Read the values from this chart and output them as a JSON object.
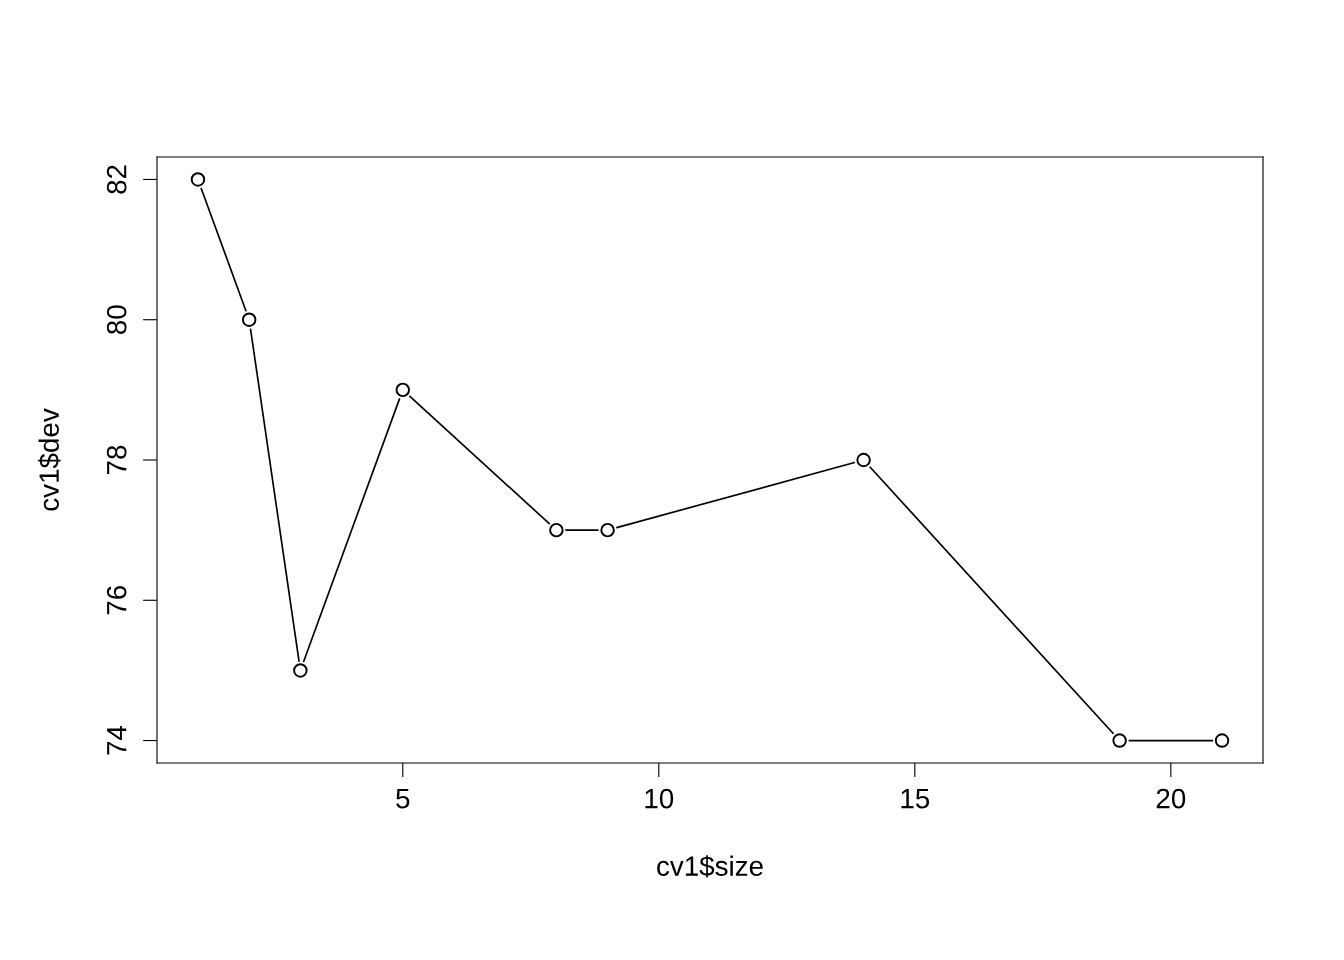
{
  "chart_data": {
    "type": "line",
    "xlabel": "cv1$size",
    "ylabel": "cv1$dev",
    "x": [
      1,
      2,
      3,
      5,
      8,
      9,
      14,
      19,
      21
    ],
    "series": [
      {
        "color": "#000000",
        "values": [
          82,
          80,
          75,
          79,
          77,
          77,
          78,
          74,
          74
        ]
      }
    ],
    "xlim": [
      0.2,
      21.8
    ],
    "ylim": [
      73.68,
      82.32
    ],
    "xticks": [
      5,
      10,
      15,
      20
    ],
    "yticks": [
      74,
      76,
      78,
      80,
      82
    ],
    "marker": "circle",
    "line_style": "solid",
    "grid": false,
    "legend": false
  }
}
